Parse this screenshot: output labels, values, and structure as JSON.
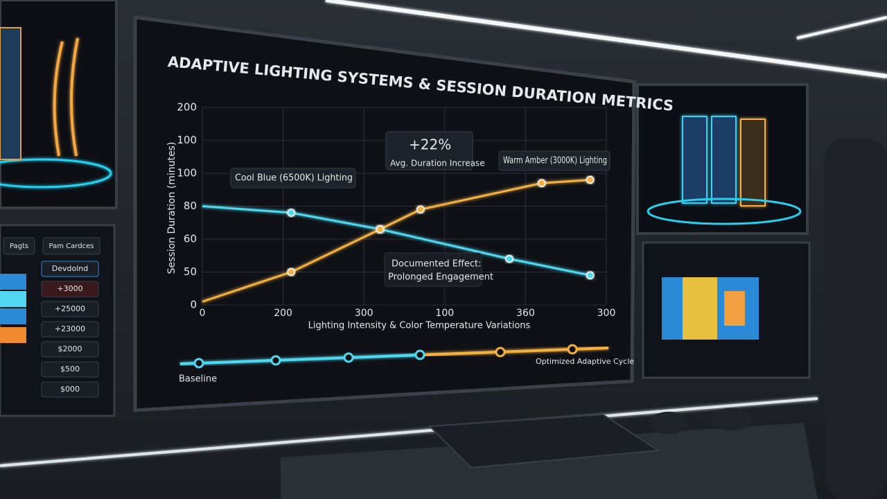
{
  "chart_data": {
    "type": "line",
    "title": "ADAPTIVE LIGHTING SYSTEMS & SESSION DURATION METRICS",
    "y_label": "Session Duration (minutes)",
    "x_label": "Lighting Intensity & Color Temperature Variations",
    "xlim": [
      0,
      5
    ],
    "xticks": [
      {
        "value": 0,
        "label": "0"
      },
      {
        "value": 1,
        "label": "200"
      },
      {
        "value": 2,
        "label": "300"
      },
      {
        "value": 3,
        "label": "100"
      },
      {
        "value": 4,
        "label": "360"
      },
      {
        "value": 5,
        "label": "300"
      }
    ],
    "ylim": [
      0,
      6
    ],
    "yticks": [
      {
        "value": 0,
        "label": "0"
      },
      {
        "value": 1,
        "label": "50"
      },
      {
        "value": 2,
        "label": "60"
      },
      {
        "value": 3,
        "label": "80"
      },
      {
        "value": 4,
        "label": "100"
      },
      {
        "value": 5,
        "label": "100"
      },
      {
        "value": 6,
        "label": "200"
      }
    ],
    "grid": true,
    "series": [
      {
        "name": "Cool Blue (6500K) Lighting",
        "color": "#4fd8f0",
        "x": [
          0,
          1.1,
          2.2,
          3.8,
          4.8
        ],
        "values": [
          3,
          2.8,
          2.3,
          1.4,
          0.9
        ]
      },
      {
        "name": "Warm Amber (3000K) Lighting",
        "color": "#f5b042",
        "x": [
          0,
          1.1,
          2.2,
          2.7,
          4.2,
          4.8
        ],
        "values": [
          0.1,
          1.0,
          2.3,
          2.9,
          3.7,
          3.8
        ]
      }
    ],
    "annotations": [
      "+22%",
      "Avg. Duration Increase",
      "Documented Effect:",
      "Prolonged Engagement",
      "Baseline",
      "Optimized Adaptive Cycle"
    ]
  },
  "side_panel": {
    "tabs": [
      "Pagts",
      "Pam Cardces"
    ],
    "items": [
      "Devdolnd",
      "+3000",
      "+25000",
      "+23000",
      "$2000",
      "$500",
      "$000"
    ]
  }
}
